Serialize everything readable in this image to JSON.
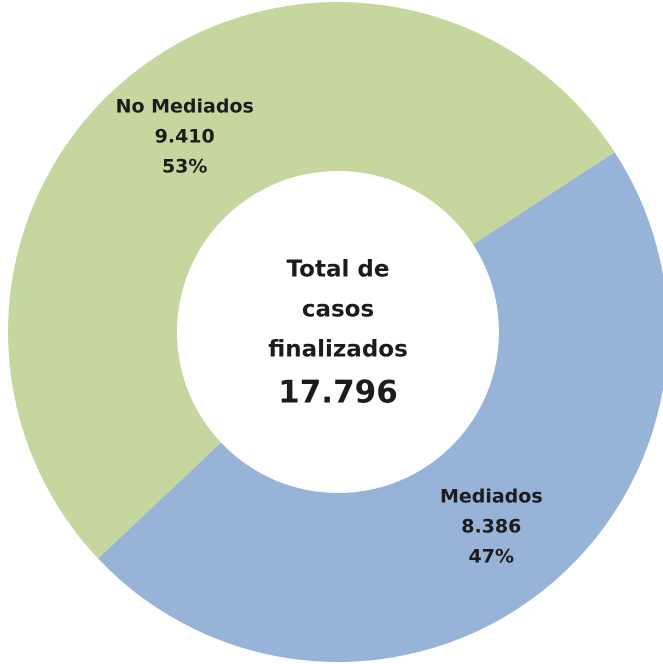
{
  "chart_data": {
    "type": "donut",
    "categories": [
      "Mediados",
      "No Mediados"
    ],
    "values": [
      8386,
      9410
    ],
    "value_labels": [
      "8.386",
      "9.410"
    ],
    "percent_labels": [
      "47%",
      "53%"
    ],
    "colors": [
      "#97b3d8",
      "#c5d69e"
    ],
    "center_label": [
      "Total de",
      "casos",
      "finalizados"
    ],
    "total_label": "17.796"
  }
}
